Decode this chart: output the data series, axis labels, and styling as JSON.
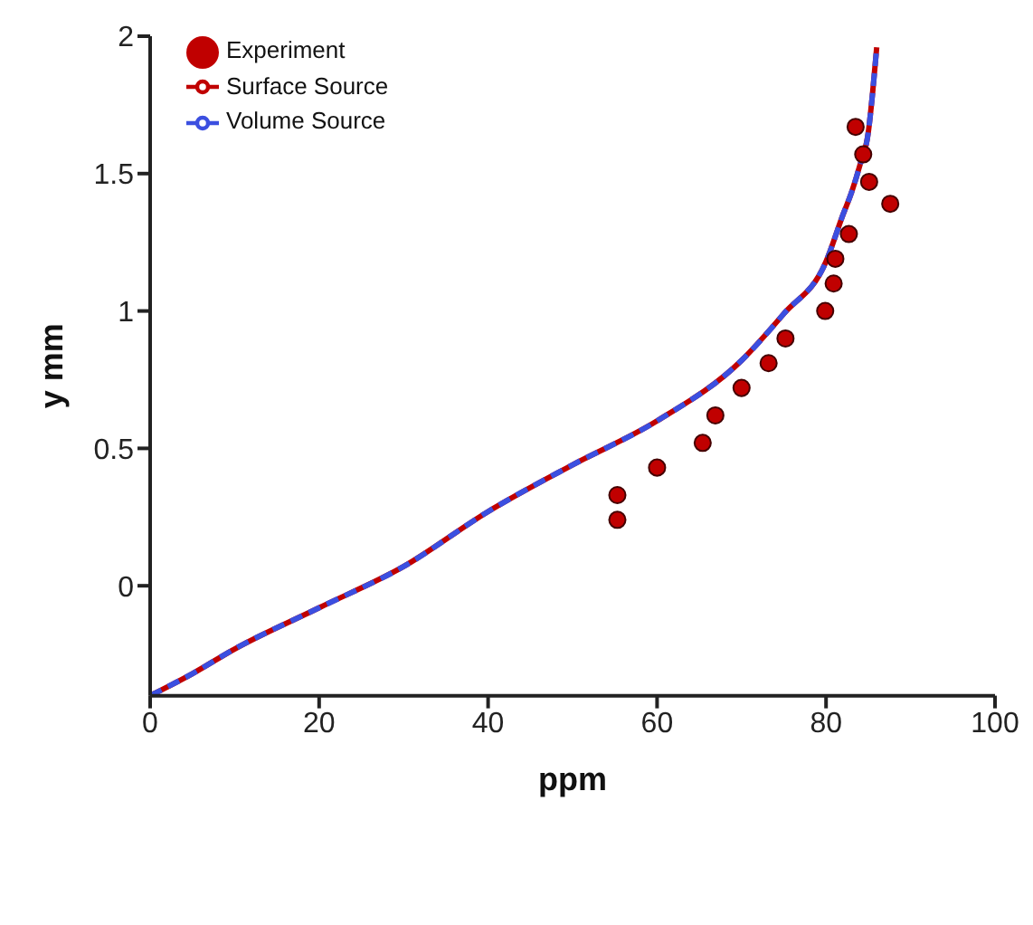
{
  "chart_data": {
    "type": "scatter",
    "xlabel": "ppm",
    "ylabel": "y mm",
    "xlim": [
      0,
      100
    ],
    "xticks": [
      0,
      20,
      40,
      60,
      80,
      100
    ],
    "ylim": [
      -0.4,
      2
    ],
    "yticks": [
      0,
      0.5,
      1,
      1.5,
      2
    ],
    "grid": false,
    "legend": "top left",
    "series": [
      {
        "name": "Experiment",
        "marker": "circle",
        "color": "#c00000",
        "x": [
          83.5,
          84.4,
          85.1,
          87.6,
          82.7,
          81.1,
          80.9,
          79.9,
          75.2,
          73.2,
          70.0,
          66.9,
          65.4,
          60.0,
          55.3,
          55.3
        ],
        "values": [
          1.67,
          1.57,
          1.47,
          1.39,
          1.28,
          1.19,
          1.1,
          1.0,
          0.9,
          0.81,
          0.72,
          0.62,
          0.52,
          0.43,
          0.33,
          0.24
        ]
      },
      {
        "name": "Surface Source",
        "type": "line",
        "line_style": "solid",
        "color": "#c00000",
        "x": [
          0,
          5,
          10,
          20,
          30,
          40,
          50,
          60,
          70,
          75,
          80,
          82,
          83,
          84,
          85,
          85.5,
          86
        ],
        "values": [
          -0.4,
          -0.32,
          -0.23,
          -0.08,
          0.07,
          0.27,
          0.44,
          0.6,
          0.82,
          0.99,
          1.18,
          1.35,
          1.43,
          1.53,
          1.65,
          1.79,
          1.96
        ]
      },
      {
        "name": "Volume Source",
        "type": "line",
        "line_style": "dashed",
        "color": "#3b4fe0",
        "x": [
          0,
          5,
          10,
          20,
          30,
          40,
          50,
          60,
          70,
          75,
          80,
          82,
          83,
          84,
          85,
          85.5,
          86
        ],
        "values": [
          -0.4,
          -0.32,
          -0.23,
          -0.08,
          0.07,
          0.27,
          0.44,
          0.6,
          0.82,
          0.99,
          1.18,
          1.35,
          1.43,
          1.53,
          1.65,
          1.79,
          1.96
        ]
      }
    ]
  }
}
